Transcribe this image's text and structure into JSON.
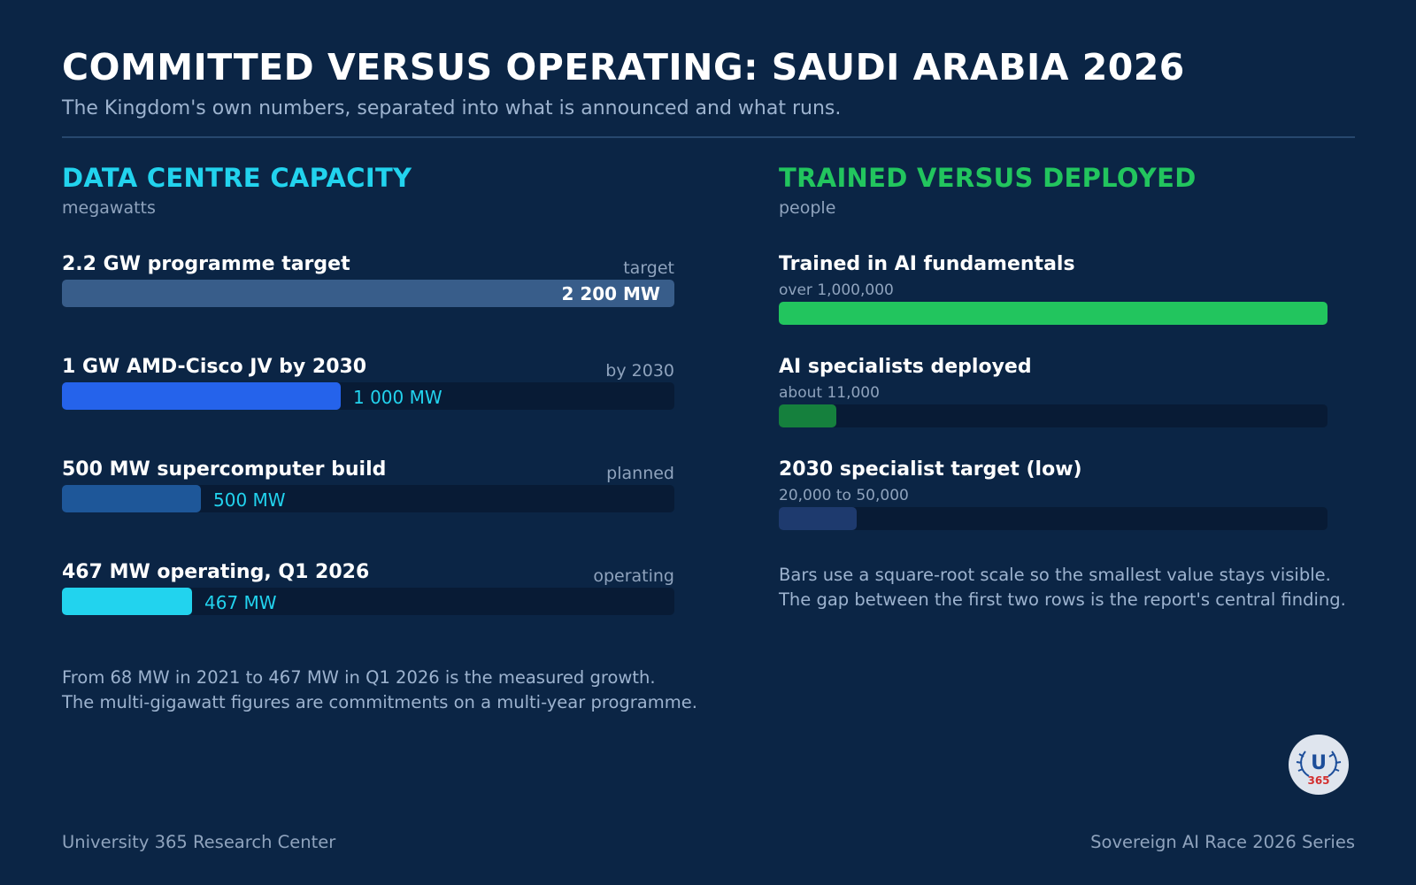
{
  "header": {
    "title": "COMMITTED VERSUS OPERATING: SAUDI ARABIA 2026",
    "subtitle": "The Kingdom's own numbers, separated into what is announced and what runs."
  },
  "left": {
    "title": "DATA CENTRE CAPACITY",
    "unit": "megawatts",
    "title_color": "#22d3ee",
    "note": [
      "From 68 MW in 2021 to 467 MW in Q1 2026 is the measured growth.",
      "The multi-gigawatt figures are commitments on a multi-year programme."
    ]
  },
  "right": {
    "title": "TRAINED VERSUS DEPLOYED",
    "unit": "people",
    "title_color": "#22c55e",
    "note": [
      "Bars use a square-root scale so the smallest value stays visible.",
      "The gap between the first two rows is the report's central finding."
    ]
  },
  "chart_data": [
    {
      "type": "bar",
      "orientation": "horizontal",
      "title": "DATA CENTRE CAPACITY",
      "unit": "megawatts",
      "xlim": [
        0,
        2200
      ],
      "bars": [
        {
          "label": "2.2 GW programme target",
          "tag": "target",
          "value": 2200,
          "value_label": "2 200 MW",
          "color": "#385d8a"
        },
        {
          "label": "1 GW AMD-Cisco JV by 2030",
          "tag": "by 2030",
          "value": 1000,
          "value_label": "1 000 MW",
          "color": "#2563eb"
        },
        {
          "label": "500 MW supercomputer build",
          "tag": "planned",
          "value": 500,
          "value_label": "500 MW",
          "color": "#1e5799"
        },
        {
          "label": "467 MW operating, Q1 2026",
          "tag": "operating",
          "value": 467,
          "value_label": "467 MW",
          "color": "#22d3ee"
        }
      ]
    },
    {
      "type": "bar",
      "orientation": "horizontal",
      "title": "TRAINED VERSUS DEPLOYED",
      "unit": "people",
      "scale": "sqrt",
      "xlim": [
        0,
        1000000
      ],
      "bars": [
        {
          "label": "Trained in AI fundamentals",
          "sublabel": "over 1,000,000",
          "value": 1000000,
          "color": "#22c55e"
        },
        {
          "label": "AI specialists deployed",
          "sublabel": "about 11,000",
          "value": 11000,
          "color": "#15803d"
        },
        {
          "label": "2030 specialist target (low)",
          "sublabel": "20,000 to 50,000",
          "value": 20000,
          "color": "#1e3a6e"
        }
      ]
    }
  ],
  "footer": {
    "left": "University 365 Research Center",
    "right": "Sovereign AI Race 2026 Series"
  },
  "logo": {
    "letter": "U",
    "number": "365",
    "bg": "#dfe5ee",
    "color": "#1d4e9a",
    "number_color": "#d32f2f"
  }
}
